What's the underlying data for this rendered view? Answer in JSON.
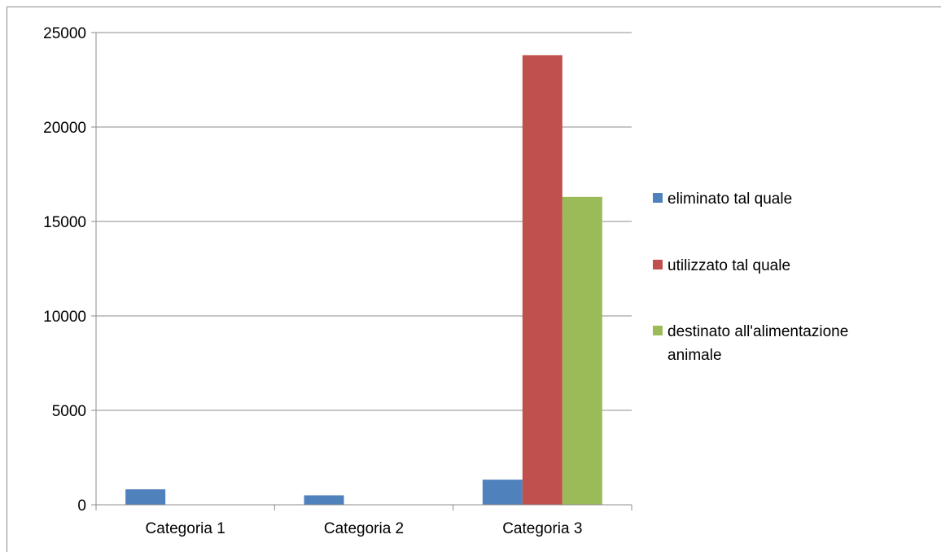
{
  "chart_data": {
    "type": "bar",
    "title": "",
    "xlabel": "",
    "ylabel": "",
    "categories": [
      "Categoria 1",
      "Categoria 2",
      "Categoria 3"
    ],
    "series": [
      {
        "name": "eliminato tal quale",
        "color": "#4f81bd",
        "values": [
          820,
          500,
          1330
        ]
      },
      {
        "name": "utilizzato tal quale",
        "color": "#c0504d",
        "values": [
          0,
          0,
          23800
        ]
      },
      {
        "name": "destinato all'alimentazione animale",
        "color": "#9bbb59",
        "values": [
          0,
          0,
          16300
        ]
      }
    ],
    "ylim": [
      0,
      25000
    ],
    "yticks": [
      "0",
      "5000",
      "10000",
      "15000",
      "20000",
      "25000"
    ],
    "grid": true,
    "legend_position": "right",
    "legend": [
      {
        "lines": [
          "eliminato tal quale"
        ],
        "color": "#4f81bd"
      },
      {
        "lines": [
          "utilizzato tal quale"
        ],
        "color": "#c0504d"
      },
      {
        "lines": [
          "destinato all'alimentazione",
          "animale"
        ],
        "color": "#9bbb59"
      }
    ]
  }
}
